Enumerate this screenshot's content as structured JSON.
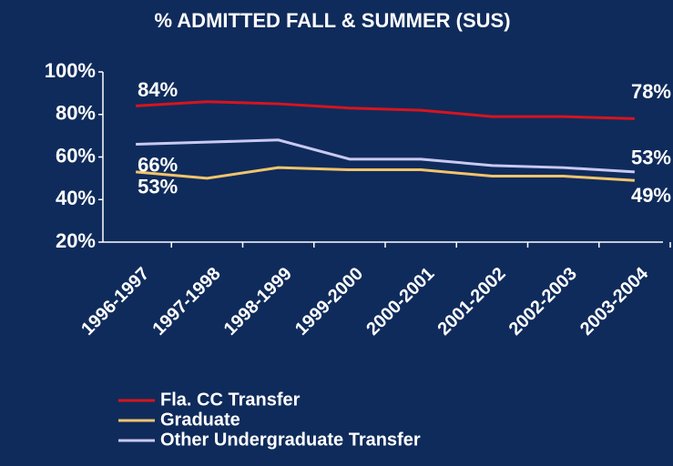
{
  "chart_data": {
    "type": "line",
    "title": "% ADMITTED FALL & SUMMER (SUS)",
    "categories": [
      "1996-1997",
      "1997-1998",
      "1998-1999",
      "1999-2000",
      "2000-2001",
      "2001-2002",
      "2002-2003",
      "2003-2004"
    ],
    "series": [
      {
        "name": "Fla. CC Transfer",
        "color": "#d7141e",
        "values": [
          84,
          86,
          85,
          83,
          82,
          79,
          79,
          78
        ],
        "value_labels": [
          "84%",
          null,
          null,
          null,
          null,
          null,
          null,
          "78%"
        ]
      },
      {
        "name": "Graduate",
        "color": "#f2c46c",
        "values": [
          53,
          50,
          55,
          54,
          54,
          51,
          51,
          49
        ],
        "value_labels": [
          "53%",
          null,
          null,
          null,
          null,
          null,
          null,
          "49%"
        ]
      },
      {
        "name": "Other Undergraduate Transfer",
        "color": "#c9c9f2",
        "values": [
          66,
          67,
          68,
          59,
          59,
          56,
          55,
          53
        ],
        "value_labels": [
          "66%",
          null,
          null,
          null,
          null,
          null,
          null,
          "53%"
        ]
      }
    ],
    "ylim": [
      20,
      100
    ],
    "yticks": [
      {
        "value": 20,
        "label": "20%"
      },
      {
        "value": 40,
        "label": "40%"
      },
      {
        "value": 60,
        "label": "60%"
      },
      {
        "value": 80,
        "label": "80%"
      },
      {
        "value": 100,
        "label": "100%"
      }
    ],
    "grid": false,
    "legend": "bottom"
  }
}
